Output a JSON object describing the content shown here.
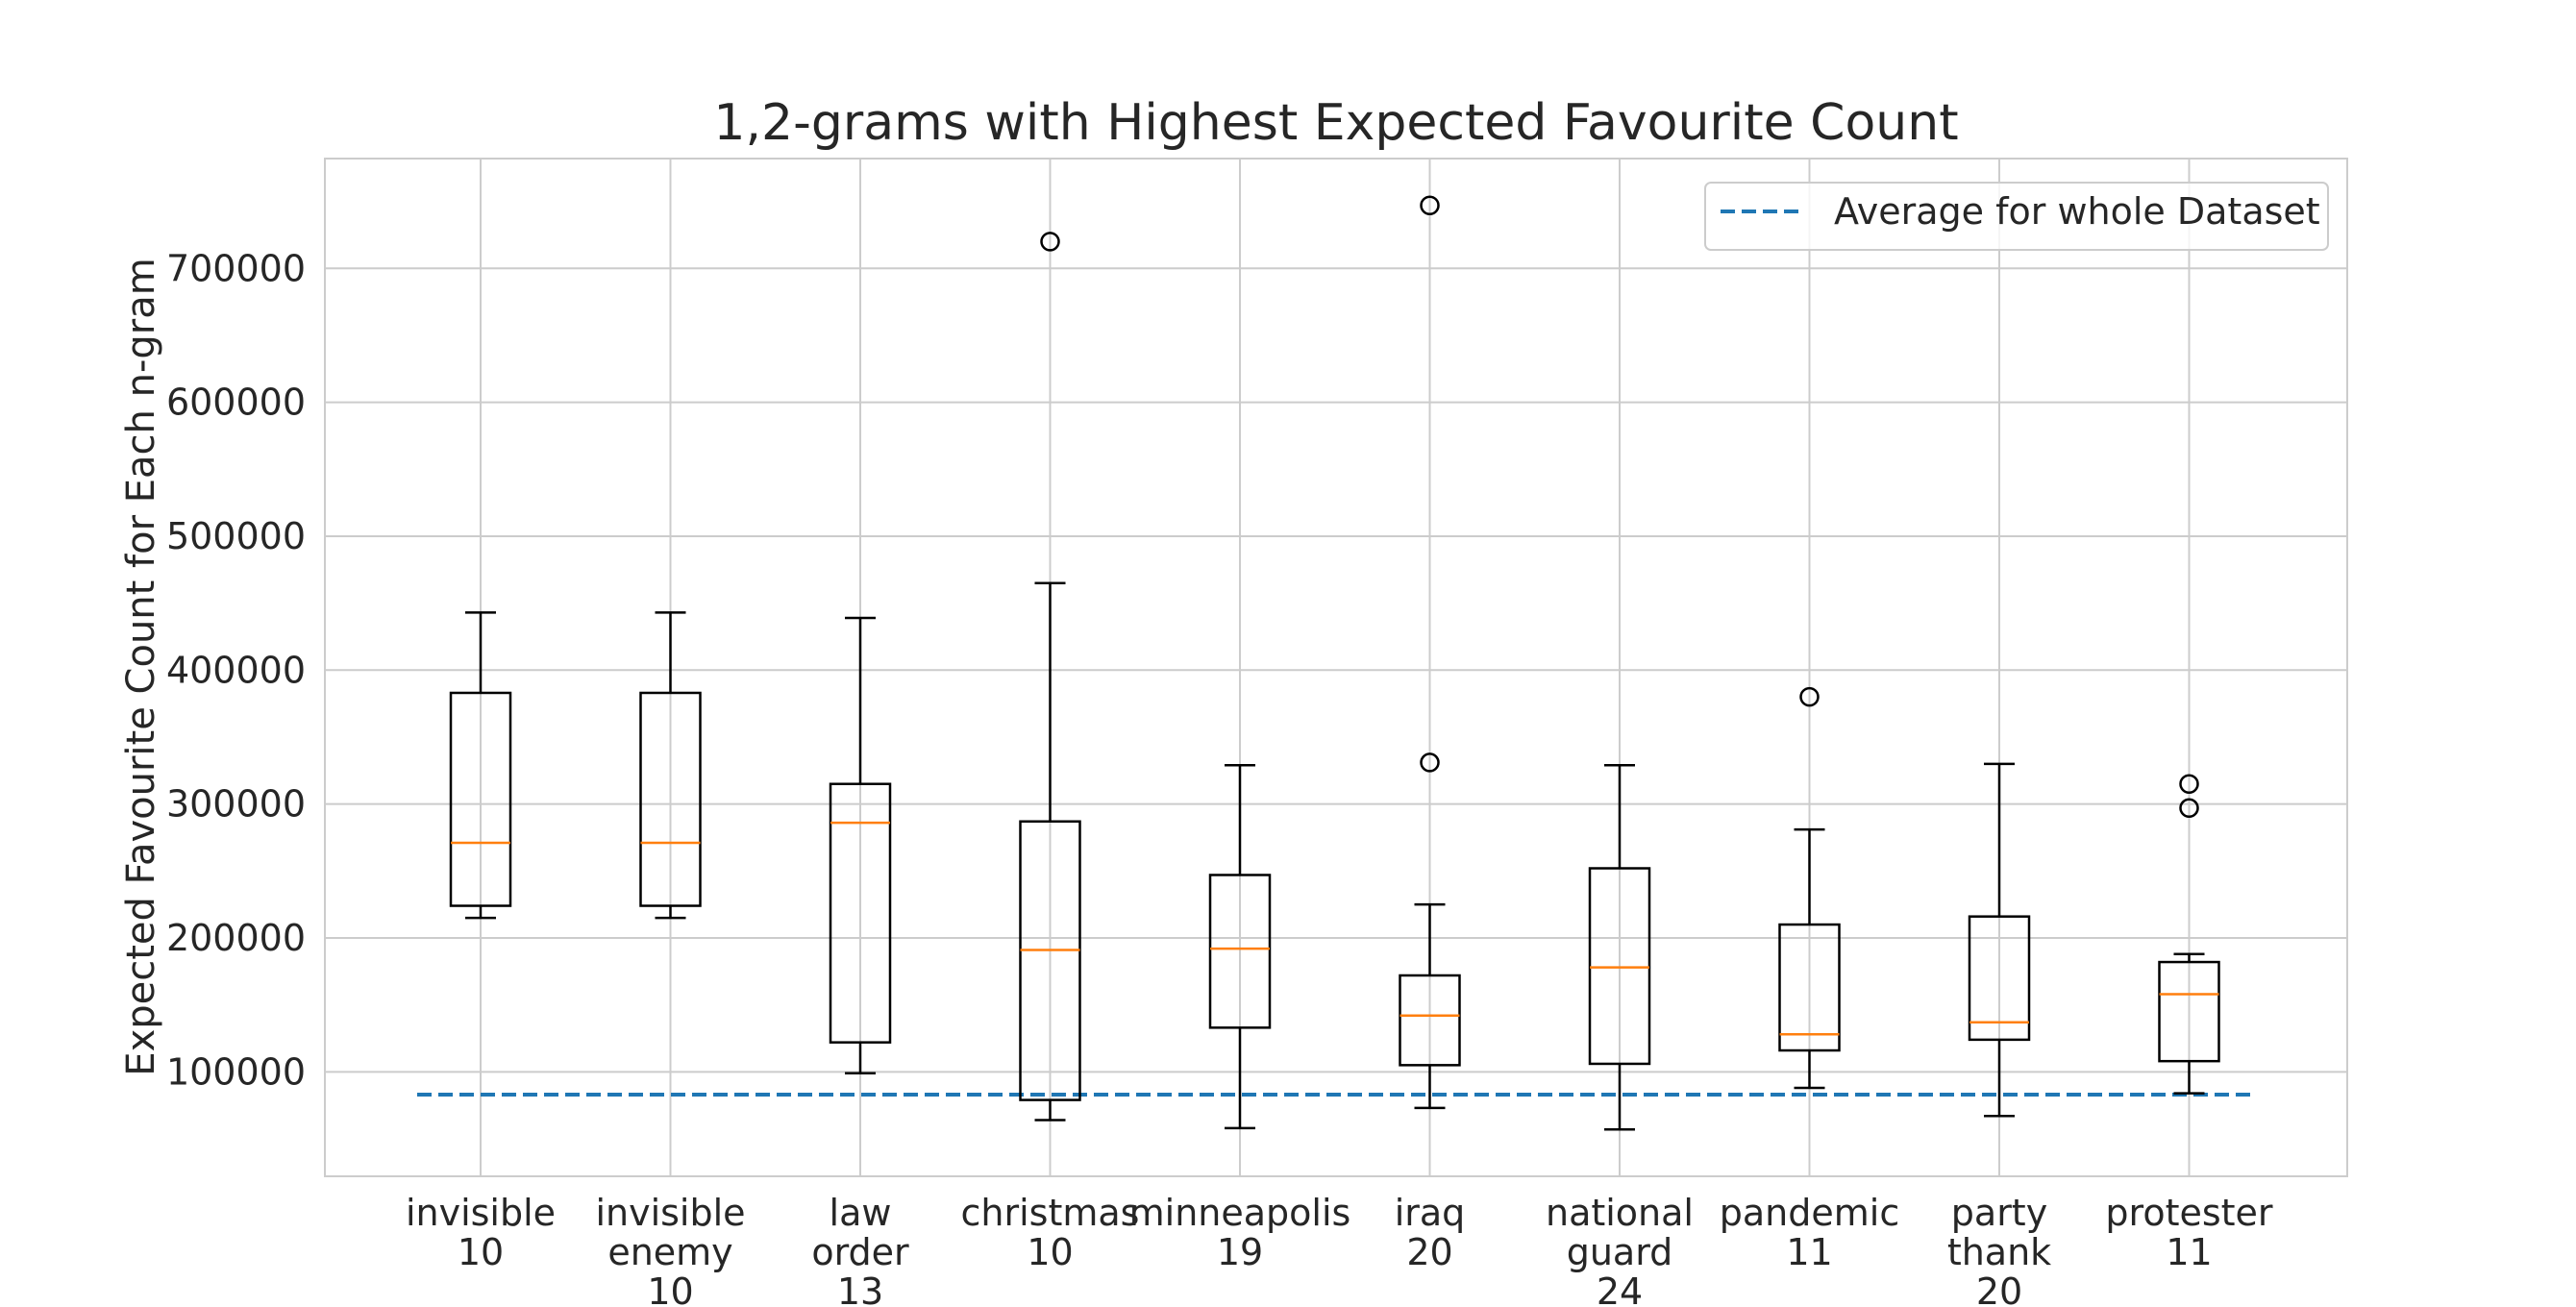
{
  "chart_data": {
    "type": "box",
    "title": "1,2-grams with Highest Expected Favourite Count",
    "xlabel": "",
    "ylabel": "Expected Favourite Count for Each n-gram",
    "ylim": [
      22000,
      782000
    ],
    "yticks": [
      100000,
      200000,
      300000,
      400000,
      500000,
      600000,
      700000
    ],
    "yticklabels": [
      "100000",
      "200000",
      "300000",
      "400000",
      "500000",
      "600000",
      "700000"
    ],
    "grid": true,
    "legend": {
      "placement": "upper right",
      "entries": [
        {
          "label": "Average for whole Dataset",
          "style": "dashed",
          "color": "#1f77b4"
        }
      ]
    },
    "reference_line": {
      "name": "Average for whole Dataset",
      "y": 83000,
      "style": "dashed",
      "color": "#1f77b4"
    },
    "colors": {
      "median": "#ff7f0e",
      "box": "#000000",
      "grid": "#cccccc",
      "average_line": "#1f77b4"
    },
    "categories": [
      {
        "label_lines": [
          "invisible",
          "10"
        ],
        "whislo": 215000,
        "q1": 224000,
        "med": 271000,
        "q3": 383000,
        "whishi": 443000,
        "fliers": []
      },
      {
        "label_lines": [
          "invisible",
          "enemy",
          "10"
        ],
        "whislo": 215000,
        "q1": 224000,
        "med": 271000,
        "q3": 383000,
        "whishi": 443000,
        "fliers": []
      },
      {
        "label_lines": [
          "law",
          "order",
          "13"
        ],
        "whislo": 99000,
        "q1": 122000,
        "med": 286000,
        "q3": 315000,
        "whishi": 439000,
        "fliers": []
      },
      {
        "label_lines": [
          "christmas",
          "10"
        ],
        "whislo": 64000,
        "q1": 79000,
        "med": 191000,
        "q3": 287000,
        "whishi": 465000,
        "fliers": [
          720000
        ]
      },
      {
        "label_lines": [
          "minneapolis",
          "19"
        ],
        "whislo": 58000,
        "q1": 133000,
        "med": 192000,
        "q3": 247000,
        "whishi": 329000,
        "fliers": []
      },
      {
        "label_lines": [
          "iraq",
          "20"
        ],
        "whislo": 73000,
        "q1": 105000,
        "med": 142000,
        "q3": 172000,
        "whishi": 225000,
        "fliers": [
          331000,
          747000
        ]
      },
      {
        "label_lines": [
          "national",
          "guard",
          "24"
        ],
        "whislo": 57000,
        "q1": 106000,
        "med": 178000,
        "q3": 252000,
        "whishi": 329000,
        "fliers": []
      },
      {
        "label_lines": [
          "pandemic",
          "11"
        ],
        "whislo": 88000,
        "q1": 116000,
        "med": 128000,
        "q3": 210000,
        "whishi": 281000,
        "fliers": [
          380000
        ]
      },
      {
        "label_lines": [
          "party",
          "thank",
          "20"
        ],
        "whislo": 67000,
        "q1": 124000,
        "med": 137000,
        "q3": 216000,
        "whishi": 330000,
        "fliers": []
      },
      {
        "label_lines": [
          "protester",
          "11"
        ],
        "whislo": 84000,
        "q1": 108000,
        "med": 158000,
        "q3": 182000,
        "whishi": 188000,
        "fliers": [
          297000,
          315000
        ]
      }
    ]
  }
}
